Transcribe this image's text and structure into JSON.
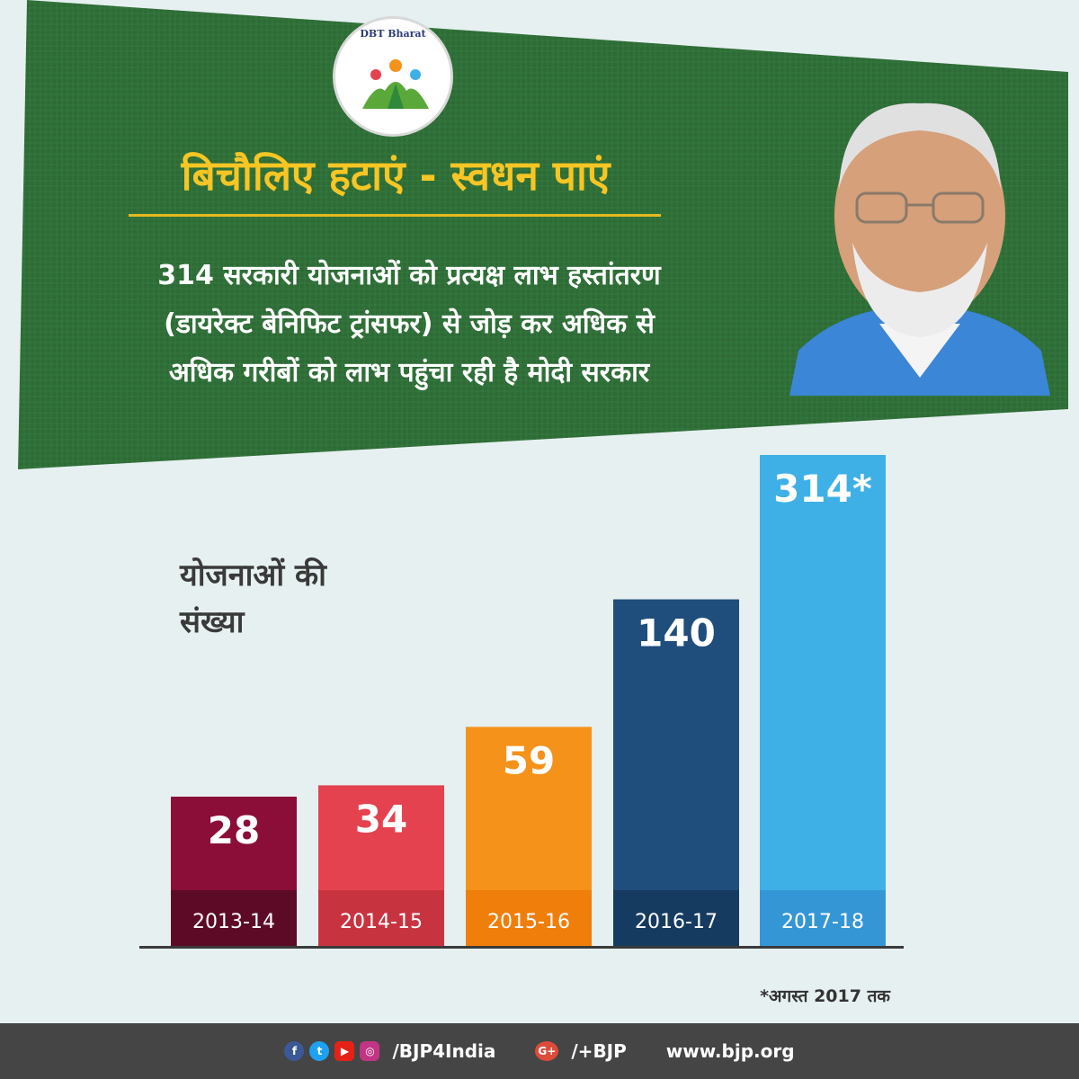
{
  "logo": {
    "text": "DBT Bharat"
  },
  "headline": "बिचौलिए हटाएं - स्वधन पाएं",
  "subtext": [
    "314 सरकारी योजनाओं को प्रत्यक्ष लाभ हस्तांतरण",
    "(डायरेक्ट बेनिफिट ट्रांसफर) से जोड़ कर अधिक से",
    "अधिक गरीबों को लाभ पहुंचा रही है मोदी सरकार"
  ],
  "colors": {
    "banner": "#2e6b36",
    "headline": "#f7c524",
    "background": "#e6f0f0"
  },
  "chart_data": {
    "type": "bar",
    "ylabel_lines": [
      "योजनाओं की",
      "संख्या"
    ],
    "categories": [
      "2013-14",
      "2014-15",
      "2015-16",
      "2016-17",
      "2017-18"
    ],
    "values": [
      28,
      34,
      59,
      140,
      314
    ],
    "value_labels": [
      "28",
      "34",
      "59",
      "140",
      "314*"
    ],
    "bar_colors": [
      "#8a0e38",
      "#e5424f",
      "#f5921a",
      "#1f4e7d",
      "#3fb0e6"
    ],
    "label_colors": [
      "#5d0a27",
      "#c73440",
      "#f07e0a",
      "#163b61",
      "#3596d6"
    ],
    "grid": false
  },
  "footnote": "*अगस्त 2017 तक",
  "footer": {
    "handle1": "/BJP4India",
    "handle2": "/+BJP",
    "website": "www.bjp.org",
    "gplus_glyph": "G+"
  }
}
